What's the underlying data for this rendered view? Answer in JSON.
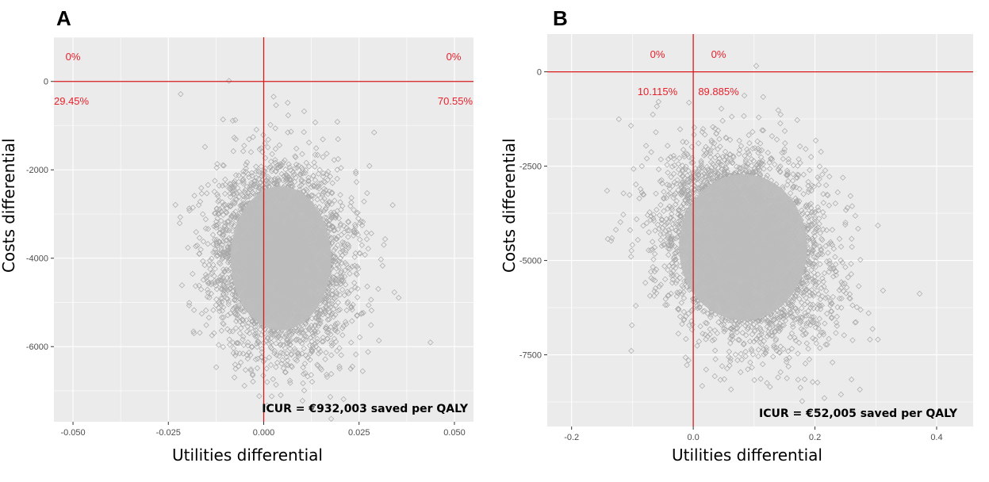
{
  "colors": {
    "panel_bg": "#ebebeb",
    "grid": "#ffffff",
    "reference_line": "#d7191c",
    "quadrant_label": "#e8202a",
    "points": "#bdbdbd",
    "point_outline": "#a8a8a8"
  },
  "chart_data": [
    {
      "panel": "A",
      "type": "scatter",
      "title": "A",
      "xlabel": "Utilities differential",
      "ylabel": "Costs differential",
      "xlim": [
        -0.055,
        0.055
      ],
      "ylim": [
        -7700,
        1000
      ],
      "xticks": [
        -0.05,
        -0.025,
        0.0,
        0.025,
        0.05
      ],
      "xtick_labels": [
        "-0.050",
        "-0.025",
        "0.000",
        "0.025",
        "0.050"
      ],
      "yticks": [
        0,
        -2000,
        -4000,
        -6000
      ],
      "ytick_labels": [
        "0",
        "-2000",
        "-4000",
        "-6000"
      ],
      "grid": true,
      "reference_lines": {
        "x": 0,
        "y": 0
      },
      "quadrant_labels": [
        {
          "text": "0%",
          "quadrant": "north-west"
        },
        {
          "text": "0%",
          "quadrant": "north-east"
        },
        {
          "text": "29.45%",
          "quadrant": "south-west"
        },
        {
          "text": "70.55%",
          "quadrant": "south-east"
        }
      ],
      "annotation": "ICUR = €932,003 saved per QALY",
      "point_cloud": {
        "n": 4000,
        "x_mean": 0.0045,
        "x_sd": 0.0085,
        "y_mean": -4000,
        "y_sd": 1050,
        "correlation": -0.05,
        "seed": 11
      }
    },
    {
      "panel": "B",
      "type": "scatter",
      "title": "B",
      "xlabel": "Utilities differential",
      "ylabel": "Costs differential",
      "xlim": [
        -0.24,
        0.46
      ],
      "ylim": [
        -9400,
        1000
      ],
      "xticks": [
        -0.2,
        0.0,
        0.2,
        0.4
      ],
      "xtick_labels": [
        "-0.2",
        "0.0",
        "0.2",
        "0.4"
      ],
      "yticks": [
        0,
        -2500,
        -5000,
        -7500
      ],
      "ytick_labels": [
        "0",
        "-2500",
        "-5000",
        "-7500"
      ],
      "grid": true,
      "reference_lines": {
        "x": 0,
        "y": 0
      },
      "quadrant_labels": [
        {
          "text": "0%",
          "quadrant": "north-west"
        },
        {
          "text": "0%",
          "quadrant": "north-east"
        },
        {
          "text": "10.115%",
          "quadrant": "south-west"
        },
        {
          "text": "89.885%",
          "quadrant": "south-east"
        }
      ],
      "annotation": "ICUR = €52,005 saved per QALY",
      "point_cloud": {
        "n": 4000,
        "x_mean": 0.082,
        "x_sd": 0.068,
        "y_mean": -4650,
        "y_sd": 1250,
        "correlation": -0.25,
        "seed": 29
      }
    }
  ]
}
